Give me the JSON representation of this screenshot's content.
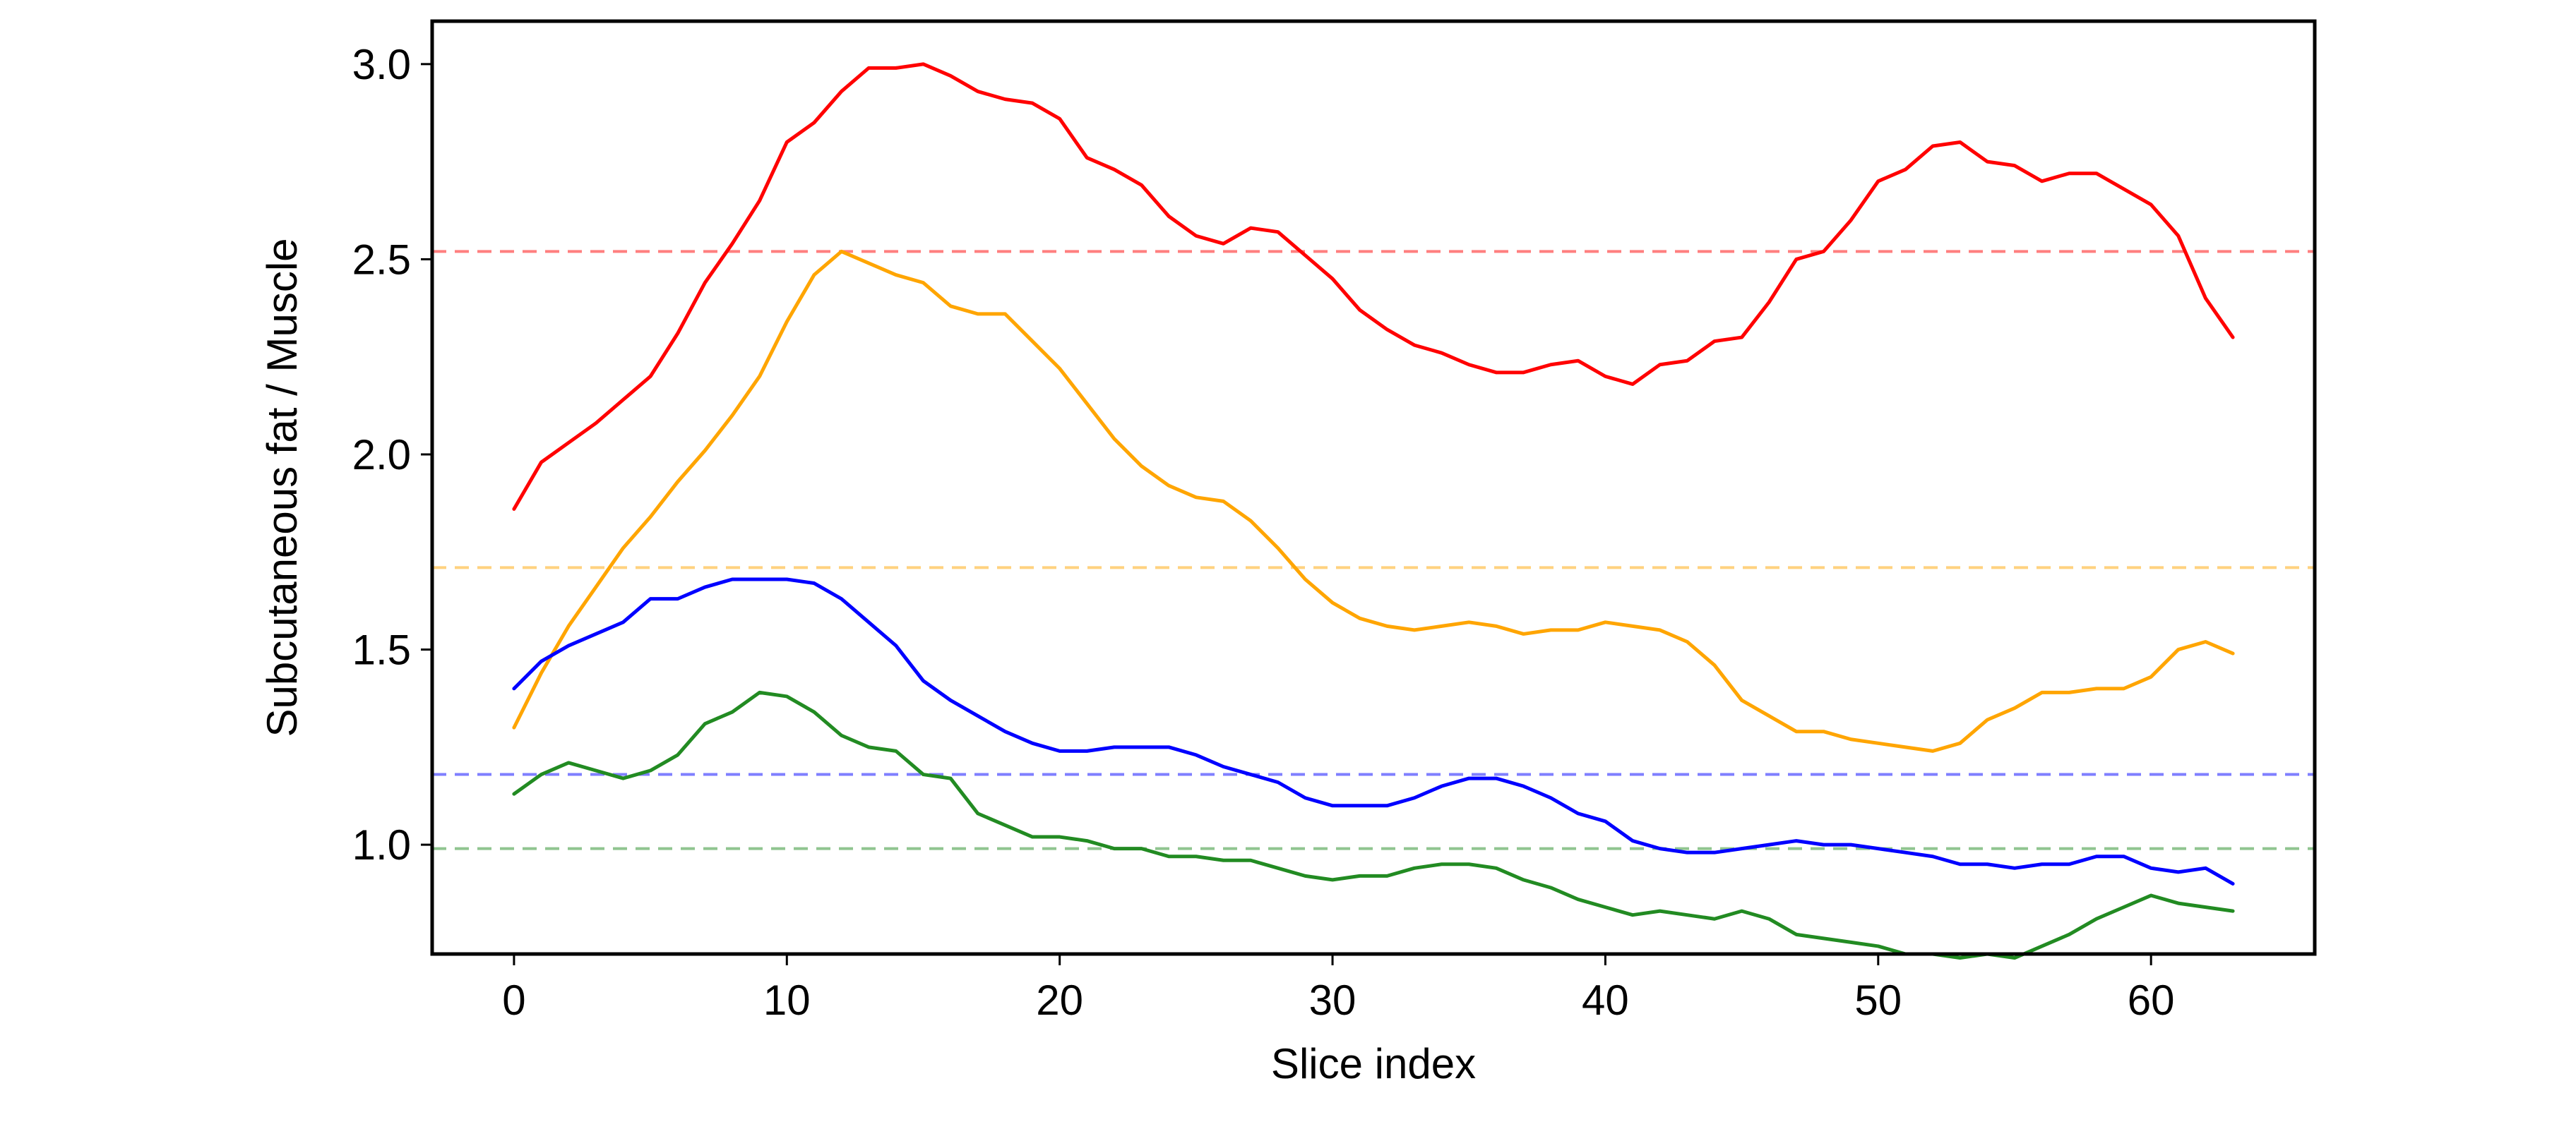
{
  "chart_data": {
    "type": "line",
    "title": "",
    "xlabel": "Slice index",
    "ylabel": "Subcutaneous fat / Muscle",
    "xlim": [
      -3,
      66
    ],
    "ylim": [
      0.72,
      3.11
    ],
    "xticks": [
      0,
      10,
      20,
      30,
      40,
      50,
      60
    ],
    "yticks": [
      1.0,
      1.5,
      2.0,
      2.5,
      3.0
    ],
    "xtick_labels": [
      "0",
      "10",
      "20",
      "30",
      "40",
      "50",
      "60"
    ],
    "ytick_labels": [
      "1.0",
      "1.5",
      "2.0",
      "2.5",
      "3.0"
    ],
    "grid": false,
    "legend": "none",
    "x": [
      0,
      1,
      2,
      3,
      4,
      5,
      6,
      7,
      8,
      9,
      10,
      11,
      12,
      13,
      14,
      15,
      16,
      17,
      18,
      19,
      20,
      21,
      22,
      23,
      24,
      25,
      26,
      27,
      28,
      29,
      30,
      31,
      32,
      33,
      34,
      35,
      36,
      37,
      38,
      39,
      40,
      41,
      42,
      43,
      44,
      45,
      46,
      47,
      48,
      49,
      50,
      51,
      52,
      53,
      54,
      55,
      56,
      57,
      58,
      59,
      60,
      61,
      62,
      63
    ],
    "series": [
      {
        "color": "#ff0000",
        "values": [
          1.86,
          1.98,
          2.03,
          2.08,
          2.14,
          2.2,
          2.31,
          2.44,
          2.54,
          2.65,
          2.8,
          2.85,
          2.93,
          2.99,
          2.99,
          3.0,
          2.97,
          2.93,
          2.91,
          2.9,
          2.86,
          2.76,
          2.73,
          2.69,
          2.61,
          2.56,
          2.54,
          2.58,
          2.57,
          2.51,
          2.45,
          2.37,
          2.32,
          2.28,
          2.26,
          2.23,
          2.21,
          2.21,
          2.23,
          2.24,
          2.2,
          2.18,
          2.23,
          2.24,
          2.29,
          2.3,
          2.39,
          2.5,
          2.52,
          2.6,
          2.7,
          2.73,
          2.79,
          2.8,
          2.75,
          2.74,
          2.7,
          2.72,
          2.72,
          2.68,
          2.64,
          2.56,
          2.4,
          2.3
        ]
      },
      {
        "color": "#ffa500",
        "values": [
          1.3,
          1.44,
          1.56,
          1.66,
          1.76,
          1.84,
          1.93,
          2.01,
          2.1,
          2.2,
          2.34,
          2.46,
          2.52,
          2.49,
          2.46,
          2.44,
          2.38,
          2.36,
          2.36,
          2.29,
          2.22,
          2.13,
          2.04,
          1.97,
          1.92,
          1.89,
          1.88,
          1.83,
          1.76,
          1.68,
          1.62,
          1.58,
          1.56,
          1.55,
          1.56,
          1.57,
          1.56,
          1.54,
          1.55,
          1.55,
          1.57,
          1.56,
          1.55,
          1.52,
          1.46,
          1.37,
          1.33,
          1.29,
          1.29,
          1.27,
          1.26,
          1.25,
          1.24,
          1.26,
          1.32,
          1.35,
          1.39,
          1.39,
          1.4,
          1.4,
          1.43,
          1.5,
          1.52,
          1.49
        ]
      },
      {
        "color": "#0000ff",
        "values": [
          1.4,
          1.47,
          1.51,
          1.54,
          1.57,
          1.63,
          1.63,
          1.66,
          1.68,
          1.68,
          1.68,
          1.67,
          1.63,
          1.57,
          1.51,
          1.42,
          1.37,
          1.33,
          1.29,
          1.26,
          1.24,
          1.24,
          1.25,
          1.25,
          1.25,
          1.23,
          1.2,
          1.18,
          1.16,
          1.12,
          1.1,
          1.1,
          1.1,
          1.12,
          1.15,
          1.17,
          1.17,
          1.15,
          1.12,
          1.08,
          1.06,
          1.01,
          0.99,
          0.98,
          0.98,
          0.99,
          1.0,
          1.01,
          1.0,
          1.0,
          0.99,
          0.98,
          0.97,
          0.95,
          0.95,
          0.94,
          0.95,
          0.95,
          0.97,
          0.97,
          0.94,
          0.93,
          0.94,
          0.9
        ]
      },
      {
        "color": "#228b22",
        "values": [
          1.13,
          1.18,
          1.21,
          1.19,
          1.17,
          1.19,
          1.23,
          1.31,
          1.34,
          1.39,
          1.38,
          1.34,
          1.28,
          1.25,
          1.24,
          1.18,
          1.17,
          1.08,
          1.05,
          1.02,
          1.02,
          1.01,
          0.99,
          0.99,
          0.97,
          0.97,
          0.96,
          0.96,
          0.94,
          0.92,
          0.91,
          0.92,
          0.92,
          0.94,
          0.95,
          0.95,
          0.94,
          0.91,
          0.89,
          0.86,
          0.84,
          0.82,
          0.83,
          0.82,
          0.81,
          0.83,
          0.81,
          0.77,
          0.76,
          0.75,
          0.74,
          0.72,
          0.72,
          0.71,
          0.72,
          0.71,
          0.74,
          0.77,
          0.81,
          0.84,
          0.87,
          0.85,
          0.84,
          0.83
        ]
      }
    ],
    "reference_lines": [
      {
        "color": "#ff0000",
        "y": 2.52,
        "style": "dashed"
      },
      {
        "color": "#ffa500",
        "y": 1.71,
        "style": "dashed"
      },
      {
        "color": "#0000ff",
        "y": 1.18,
        "style": "dashed"
      },
      {
        "color": "#228b22",
        "y": 0.99,
        "style": "dashed"
      }
    ]
  }
}
